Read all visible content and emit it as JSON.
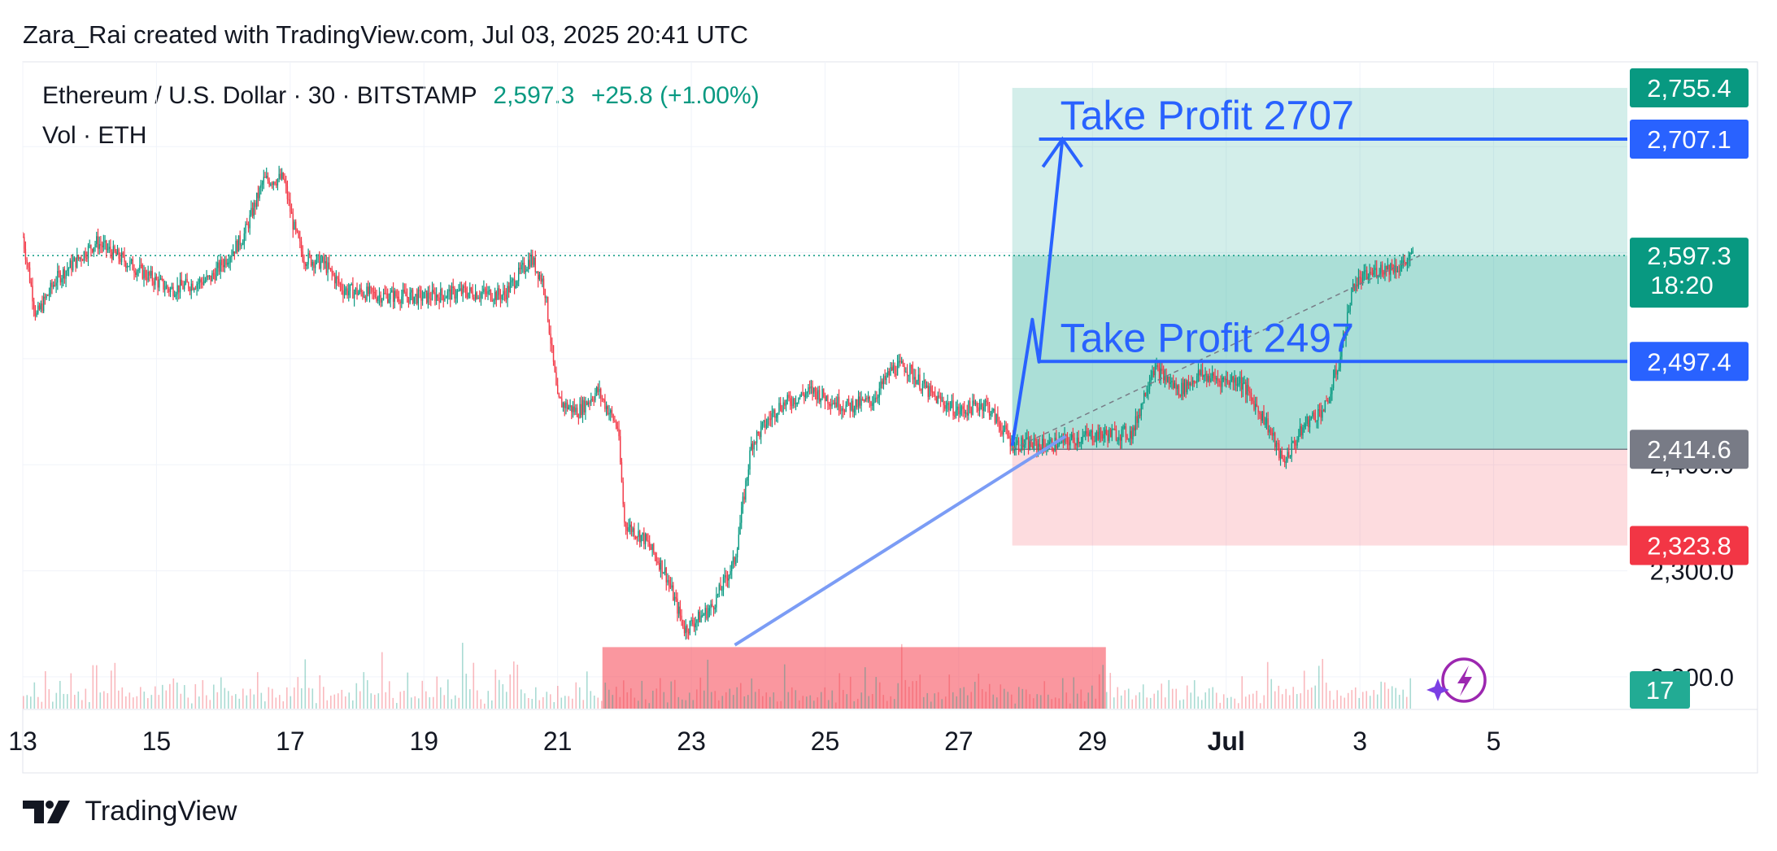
{
  "attribution": "Zara_Rai created with TradingView.com, Jul 03, 2025 20:41 UTC",
  "footer_brand": "TradingView",
  "colors": {
    "up": "#089981",
    "down": "#f23645",
    "profit_zone": "#22ab94",
    "stop_zone": "#f7525f",
    "drawing_blue": "#2962ff",
    "trend_line": "#7b9cf5",
    "demand_zone": "#f7525f"
  },
  "icons": [
    "tradingview-logo-icon",
    "lightning-icon"
  ],
  "chart_data": {
    "type": "candlestick",
    "symbol_line": "Ethereum / U.S. Dollar · 30 · BITSTAMP",
    "last_price": "2,597.3",
    "change": "+25.8 (+1.00%)",
    "volume_label": "Vol · ETH",
    "x_axis_ticks": [
      "13",
      "15",
      "17",
      "19",
      "21",
      "23",
      "25",
      "27",
      "29",
      "Jul",
      "3",
      "5"
    ],
    "y_axis_ticks": [
      "2,200.0",
      "2,300.0",
      "2,400.0"
    ],
    "xlim_days": [
      13,
      37.0
    ],
    "ylim": [
      2170,
      2780
    ],
    "price_path": [
      [
        13.0,
        2615
      ],
      [
        13.2,
        2540
      ],
      [
        13.5,
        2575
      ],
      [
        14.1,
        2610
      ],
      [
        14.7,
        2585
      ],
      [
        15.2,
        2565
      ],
      [
        15.8,
        2575
      ],
      [
        16.3,
        2615
      ],
      [
        16.6,
        2668
      ],
      [
        16.9,
        2670
      ],
      [
        17.05,
        2625
      ],
      [
        17.2,
        2595
      ],
      [
        17.5,
        2590
      ],
      [
        17.8,
        2565
      ],
      [
        18.3,
        2560
      ],
      [
        19.0,
        2558
      ],
      [
        19.6,
        2563
      ],
      [
        20.2,
        2560
      ],
      [
        20.6,
        2595
      ],
      [
        20.8,
        2570
      ],
      [
        21.0,
        2460
      ],
      [
        21.3,
        2450
      ],
      [
        21.6,
        2470
      ],
      [
        21.9,
        2435
      ],
      [
        22.0,
        2345
      ],
      [
        22.3,
        2330
      ],
      [
        22.6,
        2300
      ],
      [
        22.9,
        2245
      ],
      [
        23.3,
        2265
      ],
      [
        23.65,
        2310
      ],
      [
        23.9,
        2420
      ],
      [
        24.3,
        2455
      ],
      [
        24.8,
        2470
      ],
      [
        25.3,
        2455
      ],
      [
        25.7,
        2460
      ],
      [
        26.0,
        2490
      ],
      [
        26.2,
        2493
      ],
      [
        26.6,
        2465
      ],
      [
        27.0,
        2450
      ],
      [
        27.4,
        2458
      ],
      [
        27.8,
        2420
      ],
      [
        28.3,
        2418
      ],
      [
        29.0,
        2428
      ],
      [
        29.6,
        2430
      ],
      [
        29.9,
        2492
      ],
      [
        30.3,
        2470
      ],
      [
        30.6,
        2485
      ],
      [
        30.9,
        2480
      ],
      [
        31.2,
        2480
      ],
      [
        31.6,
        2440
      ],
      [
        31.85,
        2402
      ],
      [
        32.2,
        2440
      ],
      [
        32.5,
        2455
      ],
      [
        32.7,
        2500
      ],
      [
        32.9,
        2570
      ],
      [
        33.3,
        2585
      ],
      [
        33.6,
        2587
      ],
      [
        33.8,
        2597.3
      ]
    ],
    "volume_series": [
      3,
      4,
      2,
      5,
      3,
      2,
      6,
      3,
      2,
      4,
      9,
      5,
      3,
      7,
      4,
      3,
      2,
      3,
      2,
      6,
      10,
      4,
      3,
      5,
      8,
      7,
      4,
      3,
      2,
      3,
      4,
      2,
      3,
      5,
      3,
      2,
      4,
      3,
      4,
      3,
      4,
      5,
      4,
      3,
      6,
      3,
      2,
      4,
      3,
      5,
      3,
      2,
      4,
      3,
      5,
      4,
      3,
      2,
      3,
      4,
      3,
      2,
      3,
      4,
      5,
      3,
      2,
      6,
      4,
      3,
      2,
      3,
      4,
      3,
      5,
      6,
      3,
      7,
      4,
      3,
      2,
      5,
      4,
      3,
      2,
      3,
      4,
      3,
      2,
      6,
      3,
      4,
      3,
      5,
      4,
      3,
      2,
      3,
      8,
      5,
      4,
      3,
      2,
      4,
      3,
      5,
      3,
      2,
      3,
      4
    ],
    "volume_last": "17",
    "long_position": {
      "start_day": 27.8,
      "end_day": 37.0,
      "entry": 2414.6,
      "target": 2755.4,
      "stop": 2323.8,
      "current": 2597.3,
      "entry_label": "2,414.6",
      "target_label": "2,755.4",
      "stop_label": "2,323.8",
      "current_label": "2,597.3",
      "countdown": "18:20"
    },
    "take_profits": [
      {
        "text": "Take Profit 2707",
        "price": 2707.1,
        "label": "2,707.1",
        "start_day": 28.2
      },
      {
        "text": "Take Profit 2497",
        "price": 2497.4,
        "label": "2,497.4",
        "start_day": 28.2
      }
    ],
    "projection_path": [
      [
        27.8,
        2418
      ],
      [
        28.1,
        2537
      ],
      [
        28.2,
        2497
      ],
      [
        28.55,
        2707
      ]
    ],
    "trend_line": [
      [
        23.65,
        2230
      ],
      [
        28.6,
        2427
      ]
    ],
    "demand_zone": {
      "start_day": 21.67,
      "end_day": 29.2,
      "top": 2228,
      "bottom": 2168
    }
  }
}
